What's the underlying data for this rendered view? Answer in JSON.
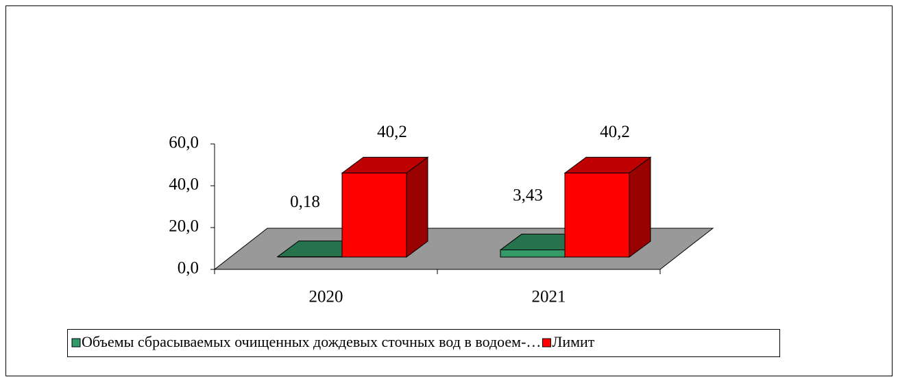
{
  "chart_data": {
    "type": "bar3d",
    "categories": [
      "2020",
      "2021"
    ],
    "series": [
      {
        "name": "Объемы сбрасываемых очищенных дождевых сточных вод в водоем-…",
        "color": "#339966",
        "values": [
          0.18,
          3.43
        ],
        "value_labels": [
          "0,18",
          "3,43"
        ]
      },
      {
        "name": "Лимит",
        "color": "#ff0000",
        "values": [
          40.2,
          40.2
        ],
        "value_labels": [
          "40,2",
          "40,2"
        ]
      }
    ],
    "ylim": [
      0,
      60
    ],
    "yticks": [
      {
        "value": 0,
        "label": "0,0"
      },
      {
        "value": 20,
        "label": "20,0"
      },
      {
        "value": 40,
        "label": "40,0"
      },
      {
        "value": 60,
        "label": "60,0"
      }
    ],
    "legend": "bottom"
  }
}
